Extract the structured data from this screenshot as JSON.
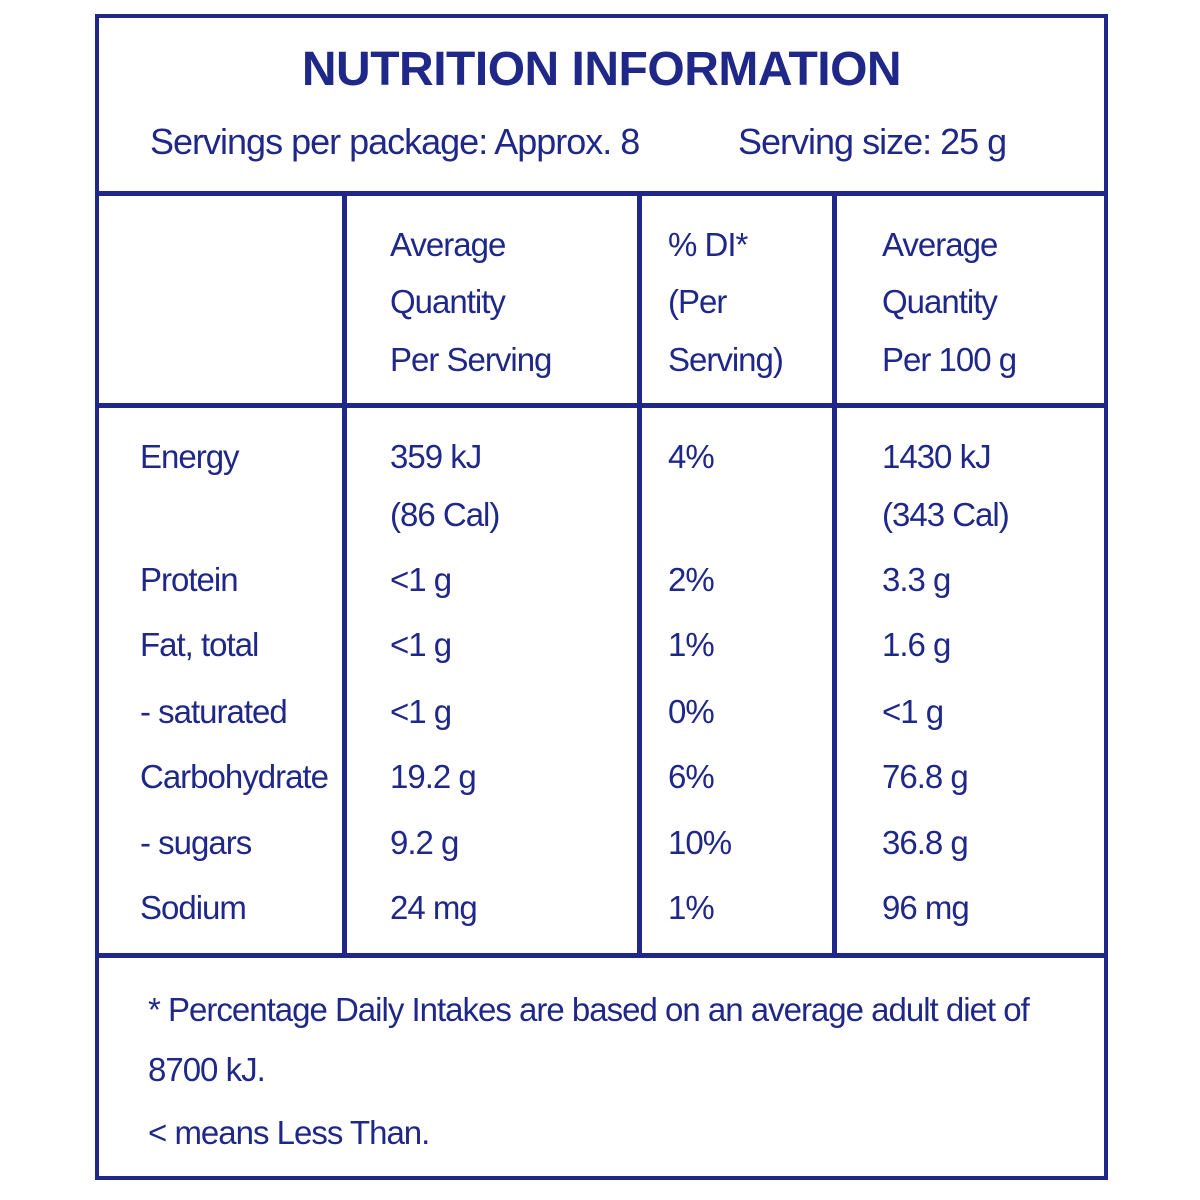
{
  "title": "NUTRITION INFORMATION",
  "servings": "Servings per package: Approx. 8",
  "serving_size": "Serving size: 25 g",
  "table": {
    "header": [
      [
        "Average",
        "Quantity",
        "Per Serving"
      ],
      [
        "% DI*",
        "(Per",
        "Serving)"
      ],
      [
        "Average",
        "Quantity",
        "Per 100 g"
      ]
    ],
    "rows": [
      [
        "Energy",
        [
          "359 kJ",
          "(86 Cal)"
        ],
        "4%",
        [
          "1430 kJ",
          "(343 Cal)"
        ]
      ],
      [
        "Protein",
        "<1 g",
        "2%",
        "3.3 g"
      ],
      [
        "Fat, total",
        "<1 g",
        "1%",
        "1.6 g"
      ],
      [
        "- saturated",
        "<1 g",
        "0%",
        "<1 g"
      ],
      [
        "Carbohydrate",
        "19.2 g",
        "6%",
        "76.8 g"
      ],
      [
        "- sugars",
        "9.2 g",
        "10%",
        "36.8 g"
      ],
      [
        "Sodium",
        "24 mg",
        "1%",
        "96 mg"
      ]
    ]
  },
  "notes": [
    "* Percentage Daily Intakes are based on an average adult diet of 8700 kJ.",
    "< means Less Than."
  ]
}
